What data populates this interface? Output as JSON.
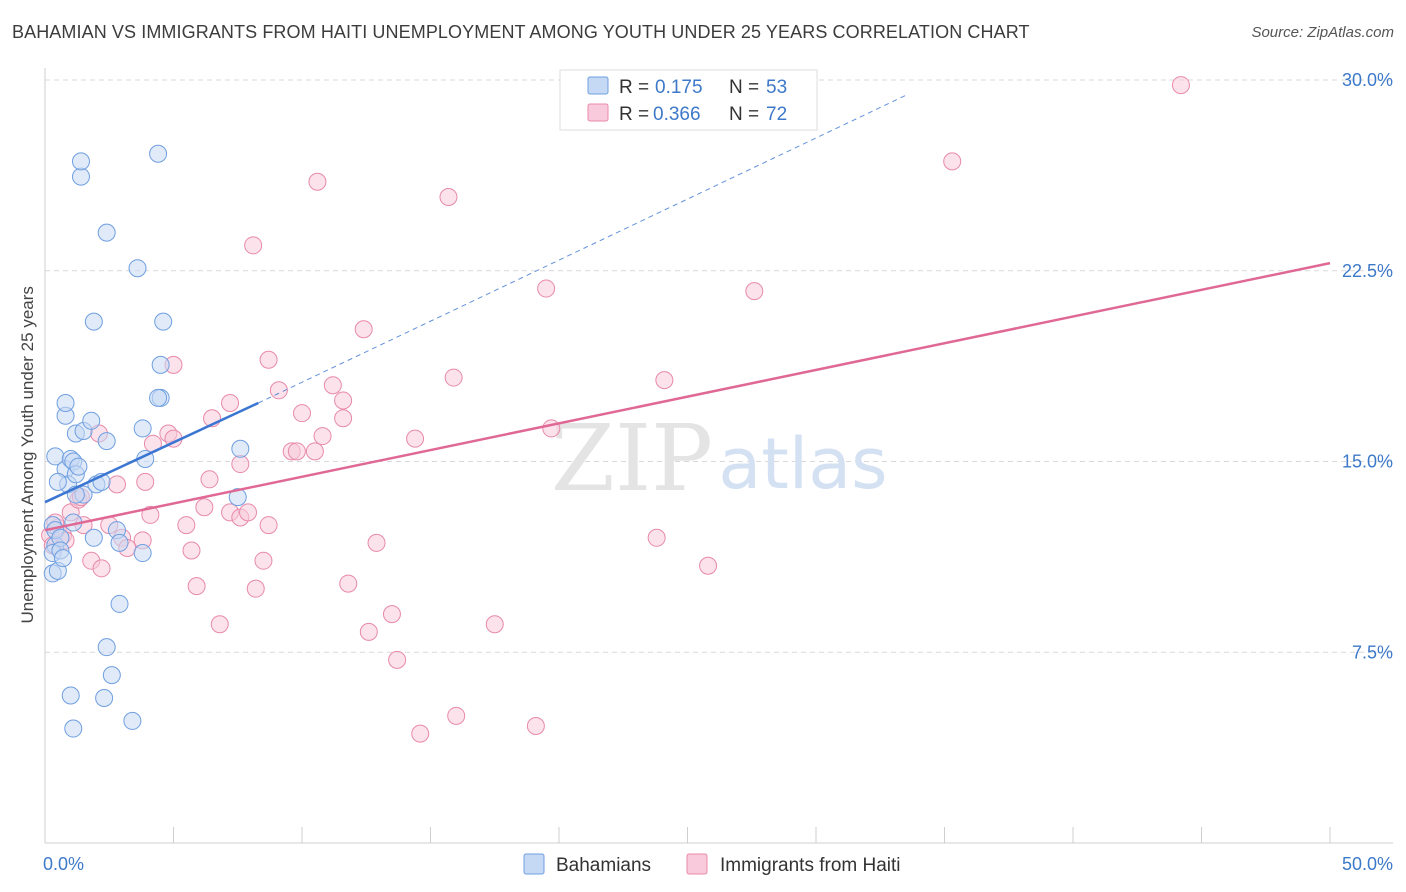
{
  "title": "BAHAMIAN VS IMMIGRANTS FROM HAITI UNEMPLOYMENT AMONG YOUTH UNDER 25 YEARS CORRELATION CHART",
  "source": "Source: ZipAtlas.com",
  "watermark": {
    "zip": "ZIP",
    "atlas": "atlas"
  },
  "colors": {
    "blue": "#6f9fe0",
    "blue_fill": "#c6d9f4",
    "blue_line": "#3b76d2",
    "pink": "#e88aaa",
    "pink_fill": "#f8cadb",
    "pink_line": "#e06894",
    "axis_text": "#3d79c9",
    "grid": "#d9d9d9"
  },
  "legend_stats": [
    {
      "r_label": "R =",
      "r_value": "0.175",
      "n_label": "N =",
      "n_value": "53"
    },
    {
      "r_label": "R =",
      "r_value": "0.366",
      "n_label": "N =",
      "n_value": "72"
    }
  ],
  "chart_data": {
    "type": "scatter",
    "title": "BAHAMIAN VS IMMIGRANTS FROM HAITI UNEMPLOYMENT AMONG YOUTH UNDER 25 YEARS CORRELATION CHART",
    "xlabel": "",
    "ylabel": "Unemployment Among Youth under 25 years",
    "xlim": [
      0,
      50
    ],
    "ylim": [
      0,
      30
    ],
    "x_ticks": [
      {
        "value": 0,
        "label": "0.0%"
      },
      {
        "value": 50,
        "label": "50.0%"
      }
    ],
    "y_ticks": [
      {
        "value": 7.5,
        "label": "7.5%"
      },
      {
        "value": 15,
        "label": "15.0%"
      },
      {
        "value": 22.5,
        "label": "22.5%"
      },
      {
        "value": 30,
        "label": "30.0%"
      }
    ],
    "grid": true,
    "legend_position": "bottom",
    "series": [
      {
        "name": "Bahamians",
        "trend": {
          "x": [
            0,
            8.3
          ],
          "y": [
            13.4,
            17.3
          ],
          "extended_to": [
            33.5,
            29.4
          ]
        },
        "points": [
          [
            0.3,
            12.5
          ],
          [
            0.4,
            11.7
          ],
          [
            0.3,
            11.4
          ],
          [
            0.3,
            10.6
          ],
          [
            0.5,
            10.7
          ],
          [
            0.4,
            12.3
          ],
          [
            0.6,
            12.0
          ],
          [
            0.6,
            11.5
          ],
          [
            0.7,
            11.2
          ],
          [
            0.8,
            14.7
          ],
          [
            0.9,
            14.1
          ],
          [
            0.4,
            15.2
          ],
          [
            0.5,
            14.2
          ],
          [
            1.0,
            15.1
          ],
          [
            1.1,
            15.0
          ],
          [
            1.2,
            14.5
          ],
          [
            1.3,
            14.8
          ],
          [
            1.5,
            13.7
          ],
          [
            1.2,
            13.7
          ],
          [
            1.1,
            12.6
          ],
          [
            0.8,
            16.8
          ],
          [
            0.8,
            17.3
          ],
          [
            1.2,
            16.1
          ],
          [
            1.5,
            16.2
          ],
          [
            1.8,
            16.6
          ],
          [
            1.9,
            12.0
          ],
          [
            2.0,
            14.1
          ],
          [
            2.2,
            14.2
          ],
          [
            2.4,
            15.8
          ],
          [
            2.8,
            12.3
          ],
          [
            3.8,
            16.3
          ],
          [
            3.9,
            15.1
          ],
          [
            4.5,
            17.5
          ],
          [
            4.4,
            17.5
          ],
          [
            4.5,
            18.8
          ],
          [
            4.6,
            20.5
          ],
          [
            3.6,
            22.6
          ],
          [
            2.4,
            24.0
          ],
          [
            1.4,
            26.2
          ],
          [
            1.4,
            26.8
          ],
          [
            4.4,
            27.1
          ],
          [
            2.9,
            11.8
          ],
          [
            3.8,
            11.4
          ],
          [
            2.9,
            9.4
          ],
          [
            2.4,
            7.7
          ],
          [
            2.6,
            6.6
          ],
          [
            1.0,
            5.8
          ],
          [
            2.3,
            5.7
          ],
          [
            1.1,
            4.5
          ],
          [
            3.4,
            4.8
          ],
          [
            7.5,
            13.6
          ],
          [
            7.6,
            15.5
          ],
          [
            1.9,
            20.5
          ]
        ]
      },
      {
        "name": "Immigrants from Haiti",
        "trend": {
          "x": [
            0,
            50
          ],
          "y": [
            12.3,
            22.8
          ]
        },
        "points": [
          [
            0.2,
            12.1
          ],
          [
            0.3,
            11.7
          ],
          [
            0.5,
            12.4
          ],
          [
            0.7,
            12.1
          ],
          [
            0.8,
            11.9
          ],
          [
            1.0,
            13.0
          ],
          [
            1.3,
            13.5
          ],
          [
            1.5,
            12.5
          ],
          [
            1.8,
            11.1
          ],
          [
            2.2,
            10.8
          ],
          [
            2.5,
            12.5
          ],
          [
            2.8,
            14.1
          ],
          [
            3.0,
            12.0
          ],
          [
            3.2,
            11.6
          ],
          [
            3.9,
            14.2
          ],
          [
            4.1,
            12.9
          ],
          [
            4.2,
            15.7
          ],
          [
            4.8,
            16.1
          ],
          [
            5.0,
            15.9
          ],
          [
            5.0,
            18.8
          ],
          [
            5.5,
            12.5
          ],
          [
            5.7,
            11.5
          ],
          [
            5.9,
            10.1
          ],
          [
            6.2,
            13.2
          ],
          [
            6.4,
            14.3
          ],
          [
            6.5,
            16.7
          ],
          [
            6.8,
            8.6
          ],
          [
            7.2,
            17.3
          ],
          [
            7.2,
            13.0
          ],
          [
            7.6,
            14.9
          ],
          [
            7.6,
            12.8
          ],
          [
            7.9,
            13.0
          ],
          [
            8.2,
            10.0
          ],
          [
            8.5,
            11.1
          ],
          [
            8.7,
            12.5
          ],
          [
            8.7,
            19.0
          ],
          [
            9.1,
            17.8
          ],
          [
            9.6,
            15.4
          ],
          [
            9.8,
            15.4
          ],
          [
            10.0,
            16.9
          ],
          [
            10.5,
            15.4
          ],
          [
            10.8,
            16.0
          ],
          [
            11.2,
            18.0
          ],
          [
            11.6,
            17.4
          ],
          [
            11.6,
            16.7
          ],
          [
            11.8,
            10.2
          ],
          [
            12.4,
            20.2
          ],
          [
            12.6,
            8.3
          ],
          [
            12.9,
            11.8
          ],
          [
            13.5,
            9.0
          ],
          [
            13.7,
            7.2
          ],
          [
            10.6,
            26.0
          ],
          [
            8.1,
            23.5
          ],
          [
            14.4,
            15.9
          ],
          [
            14.6,
            4.3
          ],
          [
            15.9,
            18.3
          ],
          [
            16.0,
            5.0
          ],
          [
            17.5,
            8.6
          ],
          [
            19.1,
            4.6
          ],
          [
            19.5,
            21.8
          ],
          [
            19.7,
            16.3
          ],
          [
            23.8,
            12.0
          ],
          [
            24.1,
            18.2
          ],
          [
            25.8,
            10.9
          ],
          [
            27.6,
            21.7
          ],
          [
            35.3,
            26.8
          ],
          [
            44.2,
            29.8
          ],
          [
            15.7,
            25.4
          ],
          [
            3.8,
            11.9
          ],
          [
            2.1,
            16.1
          ],
          [
            0.4,
            12.6
          ],
          [
            1.4,
            13.6
          ]
        ]
      }
    ]
  }
}
